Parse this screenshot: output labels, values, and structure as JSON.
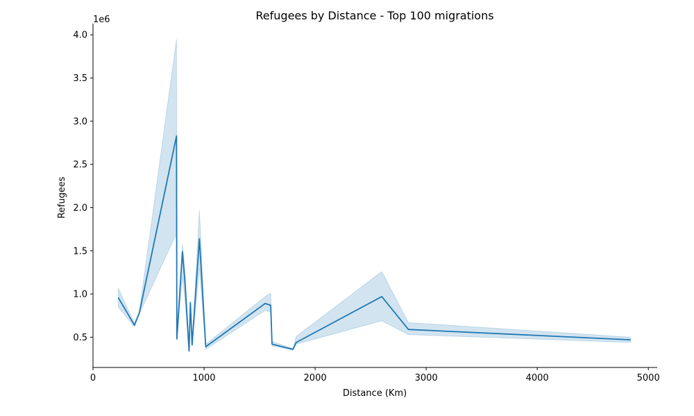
{
  "chart_data": {
    "type": "line",
    "title": "Refugees by Distance - Top 100 migrations",
    "xlabel": "Distance (Km)",
    "ylabel": "Refugees",
    "y_offset_label": "1e6",
    "xlim": [
      0,
      5080
    ],
    "ylim": [
      0.15,
      4.13
    ],
    "x_ticks": [
      0,
      1000,
      2000,
      3000,
      4000,
      5000
    ],
    "x_tick_labels": [
      "0",
      "1000",
      "2000",
      "3000",
      "4000",
      "5000"
    ],
    "y_ticks": [
      0.5,
      1.0,
      1.5,
      2.0,
      2.5,
      3.0,
      3.5,
      4.0
    ],
    "y_tick_labels": [
      "0.5",
      "1.0",
      "1.5",
      "2.0",
      "2.5",
      "3.0",
      "3.5",
      "4.0"
    ],
    "grid": false,
    "series": [
      {
        "color": "#1f77b4",
        "band_color": "#1f77b4",
        "x": [
          227,
          373,
          417,
          752,
          755,
          805,
          830,
          865,
          877,
          892,
          958,
          1015,
          1550,
          1600,
          1612,
          1800,
          1830,
          2600,
          2840,
          4840
        ],
        "y": [
          0.96,
          0.64,
          0.78,
          2.83,
          0.48,
          1.49,
          1.1,
          0.34,
          0.9,
          0.41,
          1.64,
          0.39,
          0.89,
          0.87,
          0.42,
          0.36,
          0.44,
          0.97,
          0.59,
          0.47
        ],
        "lower": [
          0.85,
          0.62,
          0.77,
          1.7,
          0.47,
          1.2,
          0.9,
          0.33,
          0.85,
          0.4,
          1.3,
          0.36,
          0.81,
          0.79,
          0.4,
          0.35,
          0.42,
          0.69,
          0.53,
          0.44
        ],
        "upper": [
          1.07,
          0.66,
          0.8,
          3.95,
          0.5,
          1.58,
          1.25,
          0.36,
          0.92,
          0.43,
          1.97,
          0.42,
          0.97,
          1.01,
          0.45,
          0.37,
          0.51,
          1.26,
          0.67,
          0.5
        ]
      }
    ]
  }
}
